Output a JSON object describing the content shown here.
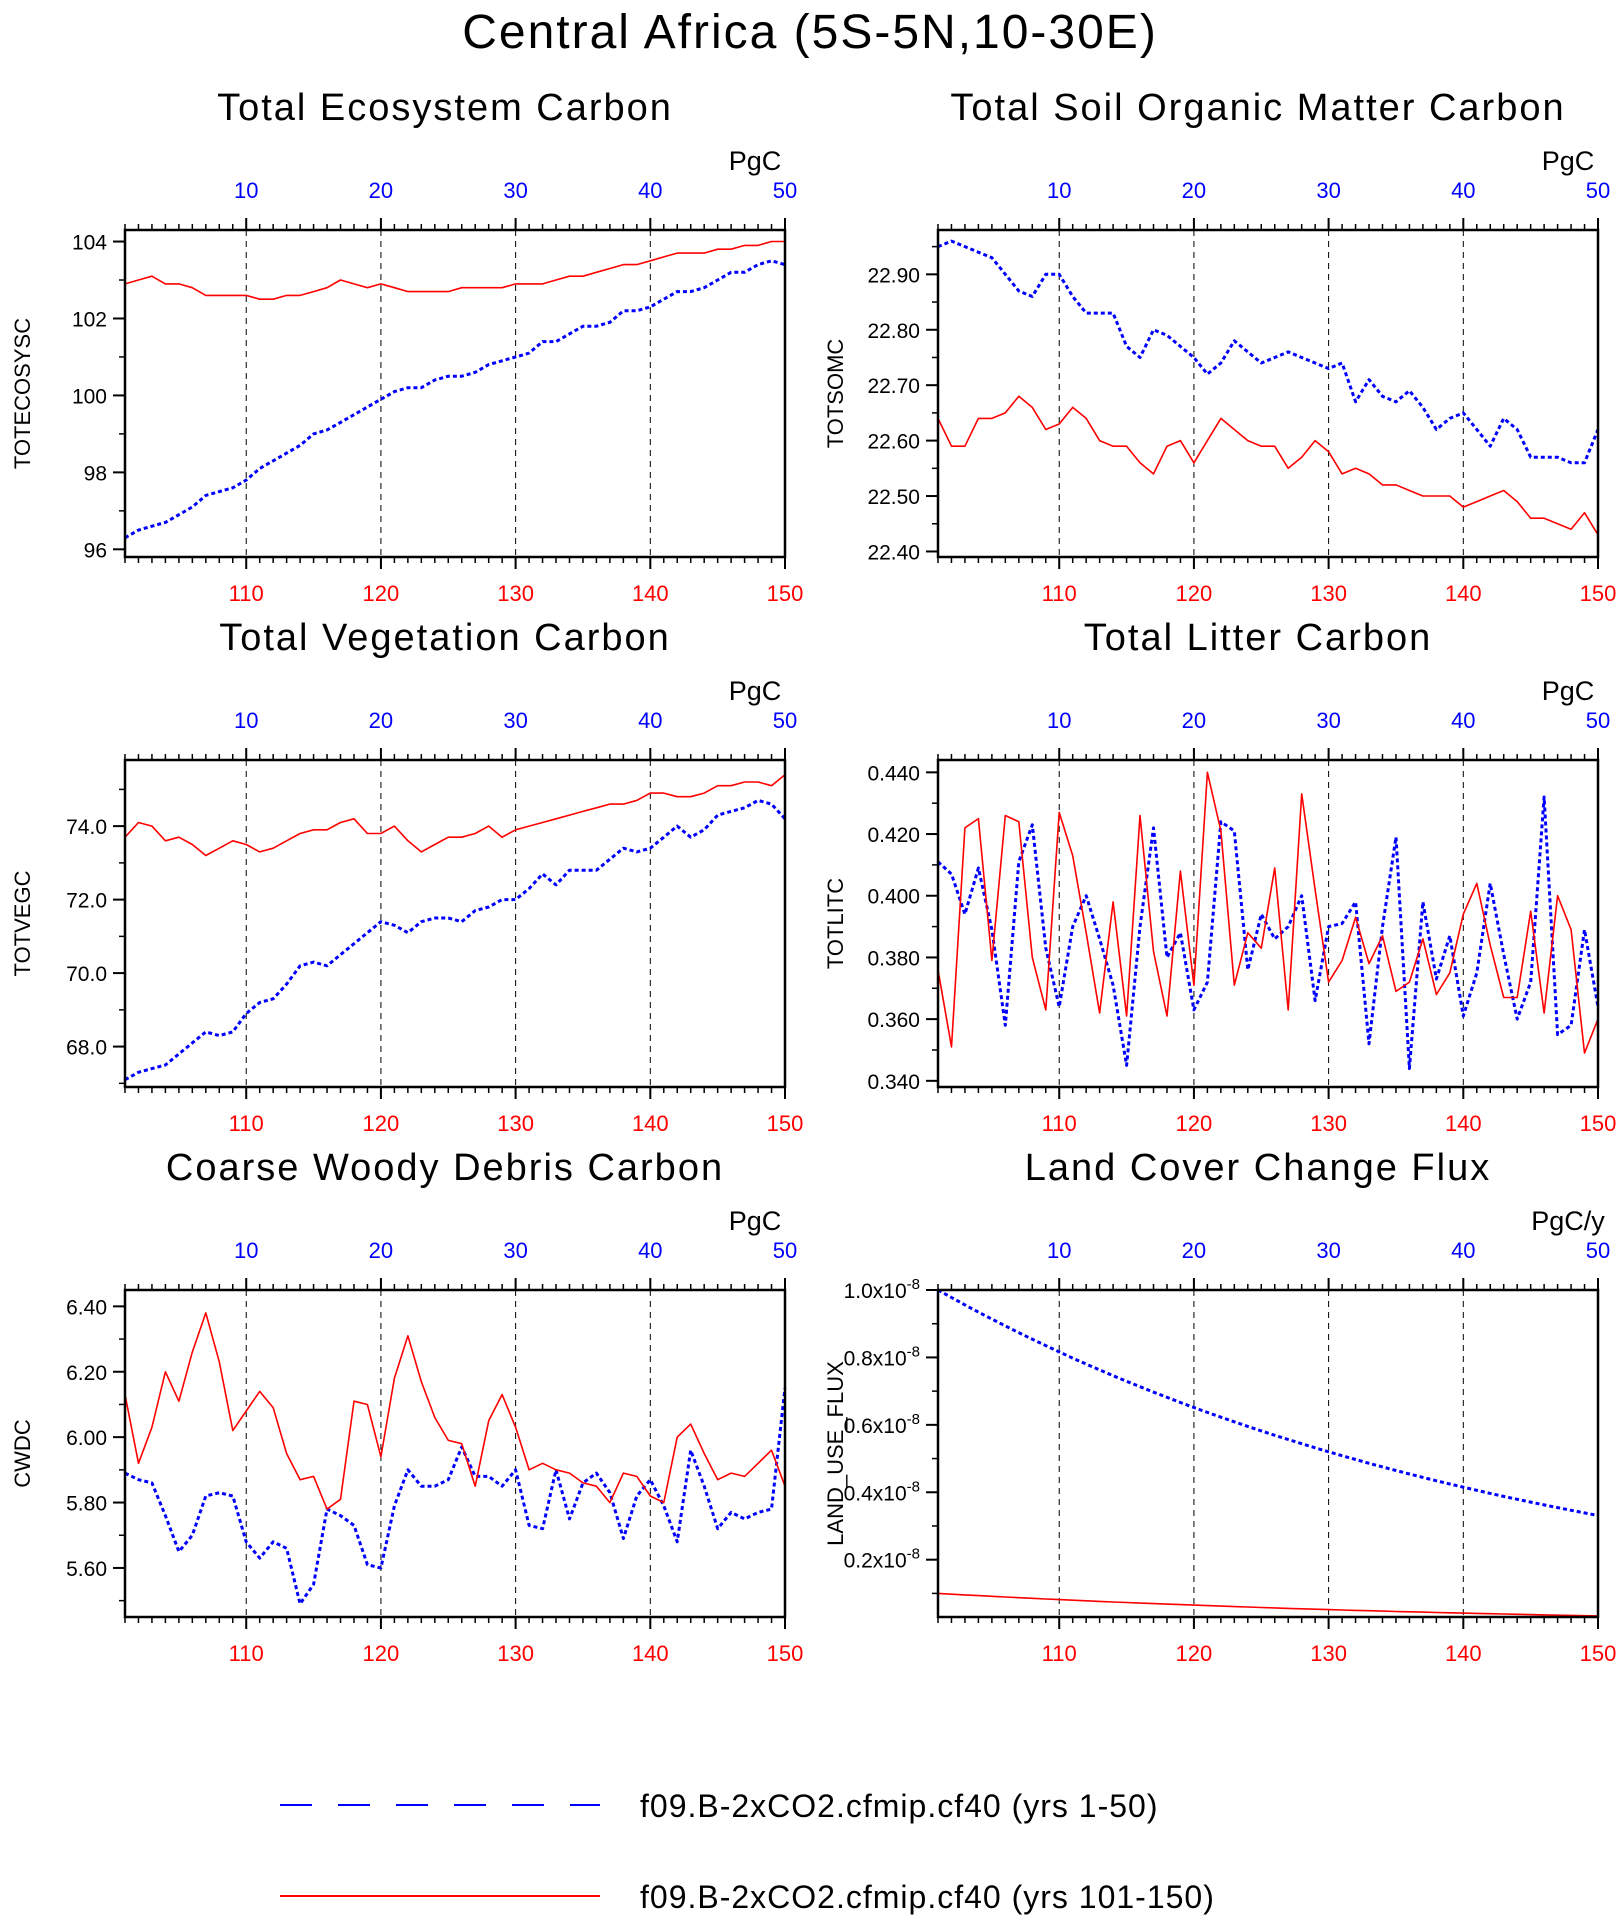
{
  "figure": {
    "title": "Central Africa (5S-5N,10-30E)",
    "colors": {
      "series1": "#0000ff",
      "series2": "#ff0000",
      "axis": "#000000"
    },
    "legend": {
      "position": "bottom",
      "items": [
        {
          "label": "f09.B-2xCO2.cfmip.cf40 (yrs 1-50)",
          "color": "#0000ff",
          "style": "dashed"
        },
        {
          "label": "f09.B-2xCO2.cfmip.cf40 (yrs 101-150)",
          "color": "#ff0000",
          "style": "solid"
        }
      ]
    }
  },
  "chart_data": [
    {
      "type": "line",
      "title": "Total Ecosystem Carbon",
      "ylabel": "TOTECOSYSC",
      "unit": "PgC",
      "x_top": {
        "range": [
          1,
          50
        ],
        "ticks": [
          10,
          20,
          30,
          40,
          50
        ],
        "color": "#0000ff"
      },
      "x_bottom": {
        "range": [
          101,
          150
        ],
        "ticks": [
          110,
          120,
          130,
          140,
          150
        ],
        "color": "#ff0000"
      },
      "ylim": [
        95.8,
        104.3
      ],
      "yticks": [
        96,
        98,
        100,
        102,
        104
      ],
      "ytick_labels": [
        "96",
        "98",
        "100",
        "102",
        "104"
      ],
      "grid": "dashed vertical at x ticks",
      "series": [
        {
          "color": "#0000ff",
          "style": "dashed",
          "values": [
            96.3,
            96.5,
            96.6,
            96.7,
            96.9,
            97.1,
            97.4,
            97.5,
            97.6,
            97.8,
            98.1,
            98.3,
            98.5,
            98.7,
            99.0,
            99.1,
            99.3,
            99.5,
            99.7,
            99.9,
            100.1,
            100.2,
            100.2,
            100.4,
            100.5,
            100.5,
            100.6,
            100.8,
            100.9,
            101.0,
            101.1,
            101.4,
            101.4,
            101.6,
            101.8,
            101.8,
            101.9,
            102.2,
            102.2,
            102.3,
            102.5,
            102.7,
            102.7,
            102.8,
            103.0,
            103.2,
            103.2,
            103.4,
            103.5,
            103.4
          ]
        },
        {
          "color": "#ff0000",
          "style": "solid",
          "values": [
            102.9,
            103.0,
            103.1,
            102.9,
            102.9,
            102.8,
            102.6,
            102.6,
            102.6,
            102.6,
            102.5,
            102.5,
            102.6,
            102.6,
            102.7,
            102.8,
            103.0,
            102.9,
            102.8,
            102.9,
            102.8,
            102.7,
            102.7,
            102.7,
            102.7,
            102.8,
            102.8,
            102.8,
            102.8,
            102.9,
            102.9,
            102.9,
            103.0,
            103.1,
            103.1,
            103.2,
            103.3,
            103.4,
            103.4,
            103.5,
            103.6,
            103.7,
            103.7,
            103.7,
            103.8,
            103.8,
            103.9,
            103.9,
            104.0,
            104.0
          ]
        }
      ]
    },
    {
      "type": "line",
      "title": "Total Soil Organic Matter Carbon",
      "ylabel": "TOTSOMC",
      "unit": "PgC",
      "x_top": {
        "range": [
          1,
          50
        ],
        "ticks": [
          10,
          20,
          30,
          40,
          50
        ],
        "color": "#0000ff"
      },
      "x_bottom": {
        "range": [
          101,
          150
        ],
        "ticks": [
          110,
          120,
          130,
          140,
          150
        ],
        "color": "#ff0000"
      },
      "ylim": [
        22.39,
        22.98
      ],
      "yticks": [
        22.4,
        22.5,
        22.6,
        22.7,
        22.8,
        22.9
      ],
      "ytick_labels": [
        "22.40",
        "22.50",
        "22.60",
        "22.70",
        "22.80",
        "22.90"
      ],
      "grid": "dashed vertical at x ticks",
      "series": [
        {
          "color": "#0000ff",
          "style": "dashed",
          "values": [
            22.95,
            22.96,
            22.95,
            22.94,
            22.93,
            22.9,
            22.87,
            22.86,
            22.9,
            22.9,
            22.86,
            22.83,
            22.83,
            22.83,
            22.77,
            22.75,
            22.8,
            22.79,
            22.77,
            22.75,
            22.72,
            22.74,
            22.78,
            22.76,
            22.74,
            22.75,
            22.76,
            22.75,
            22.74,
            22.73,
            22.74,
            22.67,
            22.71,
            22.68,
            22.67,
            22.69,
            22.66,
            22.62,
            22.64,
            22.65,
            22.62,
            22.59,
            22.64,
            22.62,
            22.57,
            22.57,
            22.57,
            22.56,
            22.56,
            22.62
          ]
        },
        {
          "color": "#ff0000",
          "style": "solid",
          "values": [
            22.64,
            22.59,
            22.59,
            22.64,
            22.64,
            22.65,
            22.68,
            22.66,
            22.62,
            22.63,
            22.66,
            22.64,
            22.6,
            22.59,
            22.59,
            22.56,
            22.54,
            22.59,
            22.6,
            22.56,
            22.6,
            22.64,
            22.62,
            22.6,
            22.59,
            22.59,
            22.55,
            22.57,
            22.6,
            22.58,
            22.54,
            22.55,
            22.54,
            22.52,
            22.52,
            22.51,
            22.5,
            22.5,
            22.5,
            22.48,
            22.49,
            22.5,
            22.51,
            22.49,
            22.46,
            22.46,
            22.45,
            22.44,
            22.47,
            22.43
          ]
        }
      ]
    },
    {
      "type": "line",
      "title": "Total Vegetation Carbon",
      "ylabel": "TOTVEGC",
      "unit": "PgC",
      "x_top": {
        "range": [
          1,
          50
        ],
        "ticks": [
          10,
          20,
          30,
          40,
          50
        ],
        "color": "#0000ff"
      },
      "x_bottom": {
        "range": [
          101,
          150
        ],
        "ticks": [
          110,
          120,
          130,
          140,
          150
        ],
        "color": "#ff0000"
      },
      "ylim": [
        66.9,
        75.8
      ],
      "yticks": [
        68,
        70,
        72,
        74
      ],
      "ytick_labels": [
        "68.0",
        "70.0",
        "72.0",
        "74.0"
      ],
      "grid": "dashed vertical at x ticks",
      "series": [
        {
          "color": "#0000ff",
          "style": "dashed",
          "values": [
            67.1,
            67.3,
            67.4,
            67.5,
            67.8,
            68.1,
            68.4,
            68.3,
            68.4,
            68.9,
            69.2,
            69.3,
            69.7,
            70.2,
            70.3,
            70.2,
            70.5,
            70.8,
            71.1,
            71.4,
            71.3,
            71.1,
            71.4,
            71.5,
            71.5,
            71.4,
            71.7,
            71.8,
            72.0,
            72.0,
            72.3,
            72.7,
            72.4,
            72.8,
            72.8,
            72.8,
            73.1,
            73.4,
            73.3,
            73.4,
            73.7,
            74.0,
            73.7,
            73.9,
            74.3,
            74.4,
            74.5,
            74.7,
            74.6,
            74.2
          ]
        },
        {
          "color": "#ff0000",
          "style": "solid",
          "values": [
            73.7,
            74.1,
            74.0,
            73.6,
            73.7,
            73.5,
            73.2,
            73.4,
            73.6,
            73.5,
            73.3,
            73.4,
            73.6,
            73.8,
            73.9,
            73.9,
            74.1,
            74.2,
            73.8,
            73.8,
            74.0,
            73.6,
            73.3,
            73.5,
            73.7,
            73.7,
            73.8,
            74.0,
            73.7,
            73.9,
            74.0,
            74.1,
            74.2,
            74.3,
            74.4,
            74.5,
            74.6,
            74.6,
            74.7,
            74.9,
            74.9,
            74.8,
            74.8,
            74.9,
            75.1,
            75.1,
            75.2,
            75.2,
            75.1,
            75.4
          ]
        }
      ]
    },
    {
      "type": "line",
      "title": "Total Litter Carbon",
      "ylabel": "TOTLITC",
      "unit": "PgC",
      "x_top": {
        "range": [
          1,
          50
        ],
        "ticks": [
          10,
          20,
          30,
          40,
          50
        ],
        "color": "#0000ff"
      },
      "x_bottom": {
        "range": [
          101,
          150
        ],
        "ticks": [
          110,
          120,
          130,
          140,
          150
        ],
        "color": "#ff0000"
      },
      "ylim": [
        0.338,
        0.444
      ],
      "yticks": [
        0.34,
        0.36,
        0.38,
        0.4,
        0.42,
        0.44
      ],
      "ytick_labels": [
        "0.340",
        "0.360",
        "0.380",
        "0.400",
        "0.420",
        "0.440"
      ],
      "grid": "dashed vertical at x ticks",
      "series": [
        {
          "color": "#0000ff",
          "style": "dashed",
          "values": [
            0.411,
            0.407,
            0.394,
            0.409,
            0.389,
            0.358,
            0.411,
            0.423,
            0.383,
            0.364,
            0.39,
            0.4,
            0.386,
            0.371,
            0.345,
            0.39,
            0.422,
            0.38,
            0.388,
            0.363,
            0.372,
            0.424,
            0.421,
            0.376,
            0.394,
            0.386,
            0.39,
            0.4,
            0.366,
            0.39,
            0.391,
            0.398,
            0.352,
            0.39,
            0.419,
            0.344,
            0.398,
            0.373,
            0.387,
            0.361,
            0.375,
            0.404,
            0.381,
            0.36,
            0.372,
            0.432,
            0.355,
            0.358,
            0.389,
            0.364
          ]
        },
        {
          "color": "#ff0000",
          "style": "solid",
          "values": [
            0.376,
            0.351,
            0.422,
            0.425,
            0.379,
            0.426,
            0.424,
            0.38,
            0.363,
            0.427,
            0.413,
            0.388,
            0.362,
            0.398,
            0.361,
            0.426,
            0.382,
            0.361,
            0.408,
            0.371,
            0.44,
            0.421,
            0.371,
            0.388,
            0.383,
            0.409,
            0.363,
            0.433,
            0.402,
            0.372,
            0.379,
            0.393,
            0.378,
            0.387,
            0.369,
            0.372,
            0.386,
            0.368,
            0.375,
            0.394,
            0.404,
            0.384,
            0.367,
            0.367,
            0.395,
            0.362,
            0.4,
            0.389,
            0.349,
            0.36
          ]
        }
      ]
    },
    {
      "type": "line",
      "title": "Coarse Woody Debris Carbon",
      "ylabel": "CWDC",
      "unit": "PgC",
      "x_top": {
        "range": [
          1,
          50
        ],
        "ticks": [
          10,
          20,
          30,
          40,
          50
        ],
        "color": "#0000ff"
      },
      "x_bottom": {
        "range": [
          101,
          150
        ],
        "ticks": [
          110,
          120,
          130,
          140,
          150
        ],
        "color": "#ff0000"
      },
      "ylim": [
        5.45,
        6.45
      ],
      "yticks": [
        5.6,
        5.8,
        6.0,
        6.2,
        6.4
      ],
      "ytick_labels": [
        "5.60",
        "5.80",
        "6.00",
        "6.20",
        "6.40"
      ],
      "grid": "dashed vertical at x ticks",
      "series": [
        {
          "color": "#0000ff",
          "style": "dashed",
          "values": [
            5.89,
            5.87,
            5.86,
            5.76,
            5.65,
            5.7,
            5.82,
            5.83,
            5.82,
            5.68,
            5.63,
            5.68,
            5.66,
            5.49,
            5.55,
            5.78,
            5.76,
            5.73,
            5.61,
            5.6,
            5.79,
            5.9,
            5.85,
            5.85,
            5.87,
            5.97,
            5.88,
            5.88,
            5.85,
            5.9,
            5.73,
            5.72,
            5.9,
            5.75,
            5.86,
            5.89,
            5.83,
            5.69,
            5.82,
            5.87,
            5.79,
            5.68,
            5.96,
            5.85,
            5.72,
            5.77,
            5.75,
            5.77,
            5.78,
            6.15
          ]
        },
        {
          "color": "#ff0000",
          "style": "solid",
          "values": [
            6.13,
            5.92,
            6.03,
            6.2,
            6.11,
            6.26,
            6.38,
            6.23,
            6.02,
            6.08,
            6.14,
            6.09,
            5.95,
            5.87,
            5.88,
            5.78,
            5.81,
            6.11,
            6.1,
            5.94,
            6.18,
            6.31,
            6.17,
            6.06,
            5.99,
            5.98,
            5.85,
            6.05,
            6.13,
            6.03,
            5.9,
            5.92,
            5.9,
            5.89,
            5.86,
            5.85,
            5.8,
            5.89,
            5.88,
            5.82,
            5.8,
            6.0,
            6.04,
            5.95,
            5.87,
            5.89,
            5.88,
            5.92,
            5.96,
            5.85
          ]
        }
      ]
    },
    {
      "type": "line",
      "title": "Land Cover Change Flux",
      "ylabel": "LAND_USE_FLUX",
      "unit": "PgC/y",
      "x_top": {
        "range": [
          1,
          50
        ],
        "ticks": [
          10,
          20,
          30,
          40,
          50
        ],
        "color": "#0000ff"
      },
      "x_bottom": {
        "range": [
          101,
          150
        ],
        "ticks": [
          110,
          120,
          130,
          140,
          150
        ],
        "color": "#ff0000"
      },
      "ylim": [
        3e-10,
        1e-08
      ],
      "yticks": [
        2e-09,
        4e-09,
        6e-09,
        8e-09,
        1e-08
      ],
      "ytick_labels": [
        {
          "mantissa": "0.2x10",
          "exponent": "-8"
        },
        {
          "mantissa": "0.4x10",
          "exponent": "-8"
        },
        {
          "mantissa": "0.6x10",
          "exponent": "-8"
        },
        {
          "mantissa": "0.8x10",
          "exponent": "-8"
        },
        {
          "mantissa": "1.0x10",
          "exponent": "-8"
        }
      ],
      "grid": "dashed vertical at x ticks",
      "series": [
        {
          "color": "#0000ff",
          "style": "dashed",
          "formula": "1.0e-8 * exp(-0.02255*(x-1))",
          "n": 50
        },
        {
          "color": "#ff0000",
          "style": "solid",
          "formula": "0.1e-8 * exp(-0.02255*(x-1))",
          "n": 50
        }
      ]
    }
  ]
}
